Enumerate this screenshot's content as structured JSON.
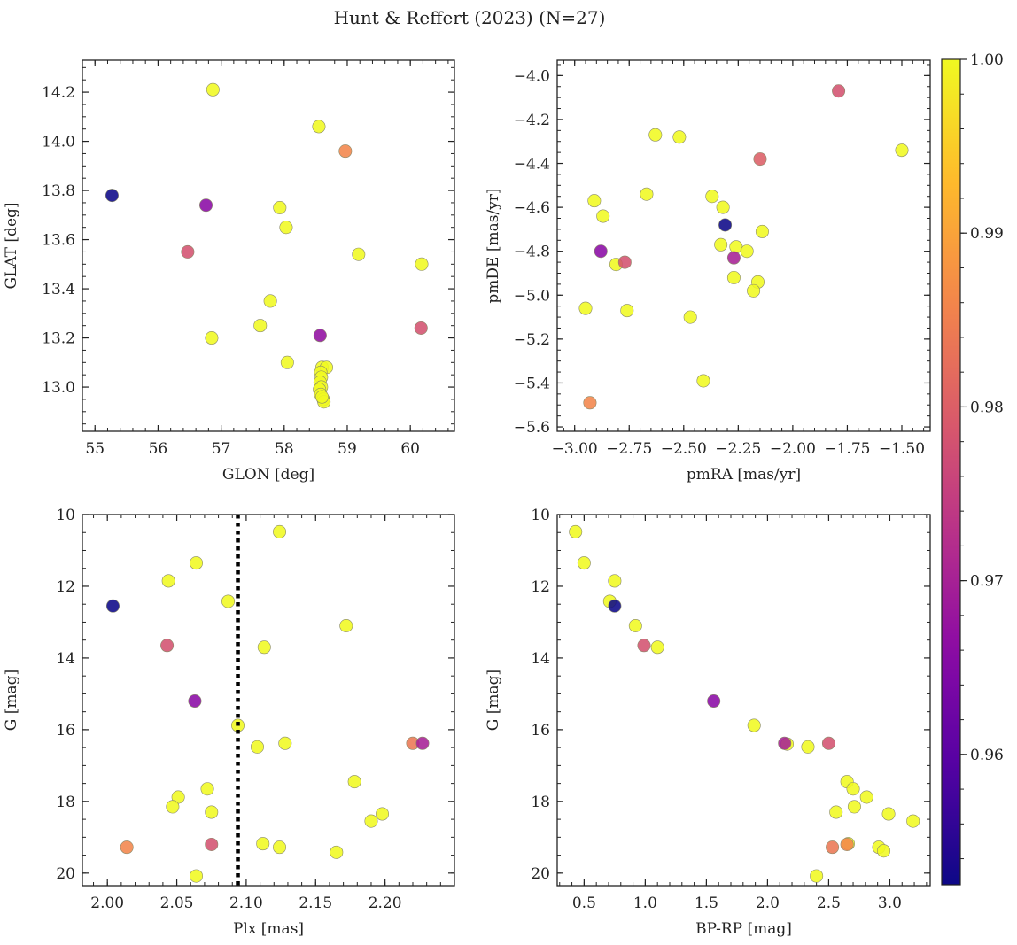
{
  "figure_title": "Hunt & Reffert (2023) (N=27)",
  "colormap": "plasma",
  "colorbar": {
    "min": 0.9525,
    "max": 1.0,
    "ticks": [
      0.96,
      0.97,
      0.98,
      0.99,
      1.0
    ],
    "tick_labels": [
      "0.96",
      "0.97",
      "0.98",
      "0.99",
      "1.00"
    ]
  },
  "chart_data": [
    {
      "type": "scatter",
      "name": "glon-glat",
      "xlabel": "GLON [deg]",
      "ylabel": "GLAT [deg]",
      "xlim": [
        54.8,
        60.7
      ],
      "ylim": [
        12.82,
        14.33
      ],
      "invert_y": false,
      "xticks": [
        55,
        56,
        57,
        58,
        59,
        60
      ],
      "xtick_labels": [
        "55",
        "56",
        "57",
        "58",
        "59",
        "60"
      ],
      "xminor": 0.2,
      "yticks": [
        13.0,
        13.2,
        13.4,
        13.6,
        13.8,
        14.0,
        14.2
      ],
      "ytick_labels": [
        "13.0",
        "13.2",
        "13.4",
        "13.6",
        "13.8",
        "14.0",
        "14.2"
      ],
      "yminor": 0.05,
      "points": [
        {
          "x": 55.27,
          "y": 13.78,
          "p": 0.9525
        },
        {
          "x": 56.87,
          "y": 14.21,
          "p": 1.0
        },
        {
          "x": 56.76,
          "y": 13.74,
          "p": 0.966
        },
        {
          "x": 56.47,
          "y": 13.55,
          "p": 0.978
        },
        {
          "x": 56.85,
          "y": 13.2,
          "p": 1.0
        },
        {
          "x": 57.62,
          "y": 13.25,
          "p": 1.0
        },
        {
          "x": 57.78,
          "y": 13.35,
          "p": 1.0
        },
        {
          "x": 57.93,
          "y": 13.73,
          "p": 1.0
        },
        {
          "x": 58.03,
          "y": 13.65,
          "p": 1.0
        },
        {
          "x": 58.05,
          "y": 13.1,
          "p": 1.0
        },
        {
          "x": 58.55,
          "y": 14.06,
          "p": 1.0
        },
        {
          "x": 58.97,
          "y": 13.96,
          "p": 0.986
        },
        {
          "x": 59.18,
          "y": 13.54,
          "p": 1.0
        },
        {
          "x": 60.18,
          "y": 13.5,
          "p": 1.0
        },
        {
          "x": 60.17,
          "y": 13.24,
          "p": 0.978
        },
        {
          "x": 58.57,
          "y": 13.21,
          "p": 0.967
        },
        {
          "x": 58.6,
          "y": 13.08,
          "p": 1.0
        },
        {
          "x": 58.67,
          "y": 13.08,
          "p": 1.0
        },
        {
          "x": 58.58,
          "y": 13.06,
          "p": 1.0
        },
        {
          "x": 58.59,
          "y": 13.04,
          "p": 1.0
        },
        {
          "x": 58.57,
          "y": 13.02,
          "p": 1.0
        },
        {
          "x": 58.59,
          "y": 13.0,
          "p": 1.0
        },
        {
          "x": 58.56,
          "y": 12.99,
          "p": 1.0
        },
        {
          "x": 58.58,
          "y": 12.97,
          "p": 1.0
        },
        {
          "x": 58.62,
          "y": 12.95,
          "p": 1.0
        },
        {
          "x": 58.63,
          "y": 12.94,
          "p": 1.0
        },
        {
          "x": 58.6,
          "y": 12.96,
          "p": 1.0
        }
      ]
    },
    {
      "type": "scatter",
      "name": "pmra-pmde",
      "xlabel": "pmRA [mas/yr]",
      "ylabel": "pmDE [mas/yr]",
      "xlim": [
        -3.08,
        -1.37
      ],
      "ylim": [
        -5.62,
        -3.93
      ],
      "invert_y": false,
      "xticks": [
        -3.0,
        -2.75,
        -2.5,
        -2.25,
        -2.0,
        -1.75,
        -1.5
      ],
      "xtick_labels": [
        "−3.00",
        "−2.75",
        "−2.50",
        "−2.25",
        "−2.00",
        "−1.75",
        "−1.50"
      ],
      "xminor": 0.05,
      "yticks": [
        -5.6,
        -5.4,
        -5.2,
        -5.0,
        -4.8,
        -4.6,
        -4.4,
        -4.2,
        -4.0
      ],
      "ytick_labels": [
        "−5.6",
        "−5.4",
        "−5.2",
        "−5.0",
        "−4.8",
        "−4.6",
        "−4.4",
        "−4.2",
        "−4.0"
      ],
      "yminor": 0.05,
      "points": [
        {
          "x": -1.79,
          "y": -4.07,
          "p": 0.978
        },
        {
          "x": -1.5,
          "y": -4.34,
          "p": 1.0
        },
        {
          "x": -2.15,
          "y": -4.38,
          "p": 0.98
        },
        {
          "x": -2.63,
          "y": -4.27,
          "p": 1.0
        },
        {
          "x": -2.52,
          "y": -4.28,
          "p": 1.0
        },
        {
          "x": -2.67,
          "y": -4.54,
          "p": 1.0
        },
        {
          "x": -2.37,
          "y": -4.55,
          "p": 1.0
        },
        {
          "x": -2.91,
          "y": -4.57,
          "p": 1.0
        },
        {
          "x": -2.32,
          "y": -4.6,
          "p": 1.0
        },
        {
          "x": -2.87,
          "y": -4.64,
          "p": 1.0
        },
        {
          "x": -2.31,
          "y": -4.68,
          "p": 0.9525
        },
        {
          "x": -2.14,
          "y": -4.71,
          "p": 1.0
        },
        {
          "x": -2.33,
          "y": -4.77,
          "p": 1.0
        },
        {
          "x": -2.26,
          "y": -4.78,
          "p": 1.0
        },
        {
          "x": -2.21,
          "y": -4.8,
          "p": 1.0
        },
        {
          "x": -2.88,
          "y": -4.8,
          "p": 0.966
        },
        {
          "x": -2.27,
          "y": -4.83,
          "p": 0.97
        },
        {
          "x": -2.77,
          "y": -4.85,
          "p": 0.978
        },
        {
          "x": -2.81,
          "y": -4.86,
          "p": 1.0
        },
        {
          "x": -2.27,
          "y": -4.92,
          "p": 1.0
        },
        {
          "x": -2.16,
          "y": -4.94,
          "p": 1.0
        },
        {
          "x": -2.18,
          "y": -4.98,
          "p": 1.0
        },
        {
          "x": -2.95,
          "y": -5.06,
          "p": 1.0
        },
        {
          "x": -2.76,
          "y": -5.07,
          "p": 1.0
        },
        {
          "x": -2.47,
          "y": -5.1,
          "p": 1.0
        },
        {
          "x": -2.41,
          "y": -5.39,
          "p": 1.0
        },
        {
          "x": -2.93,
          "y": -5.49,
          "p": 0.986
        }
      ]
    },
    {
      "type": "scatter",
      "name": "plx-g",
      "xlabel": "Plx [mas]",
      "ylabel": "G [mag]",
      "xlim": [
        1.982,
        2.25
      ],
      "ylim": [
        10.0,
        20.35
      ],
      "invert_y": true,
      "xticks": [
        2.0,
        2.05,
        2.1,
        2.15,
        2.2
      ],
      "xtick_labels": [
        "2.00",
        "2.05",
        "2.10",
        "2.15",
        "2.20"
      ],
      "xminor": 0.01,
      "yticks": [
        10,
        12,
        14,
        16,
        18,
        20
      ],
      "ytick_labels": [
        "10",
        "12",
        "14",
        "16",
        "18",
        "20"
      ],
      "yminor": 0.5,
      "vline": {
        "x": 2.094,
        "style": "dotted",
        "color": "#000000"
      },
      "points": [
        {
          "x": 2.124,
          "y": 10.48,
          "p": 1.0
        },
        {
          "x": 2.064,
          "y": 11.35,
          "p": 1.0
        },
        {
          "x": 2.044,
          "y": 11.85,
          "p": 1.0
        },
        {
          "x": 2.004,
          "y": 12.55,
          "p": 0.9525
        },
        {
          "x": 2.087,
          "y": 12.42,
          "p": 1.0
        },
        {
          "x": 2.172,
          "y": 13.1,
          "p": 1.0
        },
        {
          "x": 2.043,
          "y": 13.65,
          "p": 0.978
        },
        {
          "x": 2.113,
          "y": 13.7,
          "p": 1.0
        },
        {
          "x": 2.063,
          "y": 15.2,
          "p": 0.966
        },
        {
          "x": 2.094,
          "y": 15.88,
          "p": 1.0
        },
        {
          "x": 2.108,
          "y": 16.48,
          "p": 1.0
        },
        {
          "x": 2.128,
          "y": 16.38,
          "p": 1.0
        },
        {
          "x": 2.22,
          "y": 16.38,
          "p": 0.984
        },
        {
          "x": 2.227,
          "y": 16.38,
          "p": 0.97
        },
        {
          "x": 2.178,
          "y": 17.45,
          "p": 1.0
        },
        {
          "x": 2.072,
          "y": 17.65,
          "p": 1.0
        },
        {
          "x": 2.051,
          "y": 17.88,
          "p": 1.0
        },
        {
          "x": 2.047,
          "y": 18.15,
          "p": 1.0
        },
        {
          "x": 2.075,
          "y": 18.3,
          "p": 1.0
        },
        {
          "x": 2.198,
          "y": 18.35,
          "p": 1.0
        },
        {
          "x": 2.19,
          "y": 18.55,
          "p": 1.0
        },
        {
          "x": 2.075,
          "y": 19.2,
          "p": 0.978
        },
        {
          "x": 2.112,
          "y": 19.18,
          "p": 1.0
        },
        {
          "x": 2.014,
          "y": 19.28,
          "p": 0.986
        },
        {
          "x": 2.124,
          "y": 19.28,
          "p": 1.0
        },
        {
          "x": 2.165,
          "y": 19.42,
          "p": 1.0
        },
        {
          "x": 2.064,
          "y": 20.08,
          "p": 1.0
        }
      ]
    },
    {
      "type": "scatter",
      "name": "bprp-g",
      "xlabel": "BP-RP [mag]",
      "ylabel": "G [mag]",
      "xlim": [
        0.28,
        3.33
      ],
      "ylim": [
        10.0,
        20.35
      ],
      "invert_y": true,
      "xticks": [
        0.5,
        1.0,
        1.5,
        2.0,
        2.5,
        3.0
      ],
      "xtick_labels": [
        "0.5",
        "1.0",
        "1.5",
        "2.0",
        "2.5",
        "3.0"
      ],
      "xminor": 0.1,
      "yticks": [
        10,
        12,
        14,
        16,
        18,
        20
      ],
      "ytick_labels": [
        "10",
        "12",
        "14",
        "16",
        "18",
        "20"
      ],
      "yminor": 0.5,
      "points": [
        {
          "x": 0.43,
          "y": 10.48,
          "p": 1.0
        },
        {
          "x": 0.5,
          "y": 11.35,
          "p": 1.0
        },
        {
          "x": 0.75,
          "y": 11.85,
          "p": 1.0
        },
        {
          "x": 0.71,
          "y": 12.42,
          "p": 1.0
        },
        {
          "x": 0.75,
          "y": 12.55,
          "p": 0.9525
        },
        {
          "x": 0.92,
          "y": 13.1,
          "p": 1.0
        },
        {
          "x": 0.99,
          "y": 13.65,
          "p": 0.978
        },
        {
          "x": 1.1,
          "y": 13.7,
          "p": 1.0
        },
        {
          "x": 1.56,
          "y": 15.2,
          "p": 0.966
        },
        {
          "x": 1.89,
          "y": 15.88,
          "p": 1.0
        },
        {
          "x": 2.14,
          "y": 16.38,
          "p": 0.97
        },
        {
          "x": 2.16,
          "y": 16.4,
          "p": 1.0
        },
        {
          "x": 2.33,
          "y": 16.48,
          "p": 1.0
        },
        {
          "x": 2.5,
          "y": 16.38,
          "p": 0.978
        },
        {
          "x": 2.65,
          "y": 17.45,
          "p": 1.0
        },
        {
          "x": 2.7,
          "y": 17.65,
          "p": 1.0
        },
        {
          "x": 2.81,
          "y": 17.88,
          "p": 1.0
        },
        {
          "x": 2.71,
          "y": 18.15,
          "p": 1.0
        },
        {
          "x": 2.56,
          "y": 18.3,
          "p": 1.0
        },
        {
          "x": 2.99,
          "y": 18.35,
          "p": 1.0
        },
        {
          "x": 3.19,
          "y": 18.55,
          "p": 1.0
        },
        {
          "x": 2.65,
          "y": 19.2,
          "p": 0.986
        },
        {
          "x": 2.66,
          "y": 19.18,
          "p": 1.0
        },
        {
          "x": 2.53,
          "y": 19.28,
          "p": 0.984
        },
        {
          "x": 2.91,
          "y": 19.28,
          "p": 1.0
        },
        {
          "x": 2.95,
          "y": 19.38,
          "p": 1.0
        },
        {
          "x": 2.4,
          "y": 20.08,
          "p": 1.0
        }
      ]
    }
  ]
}
